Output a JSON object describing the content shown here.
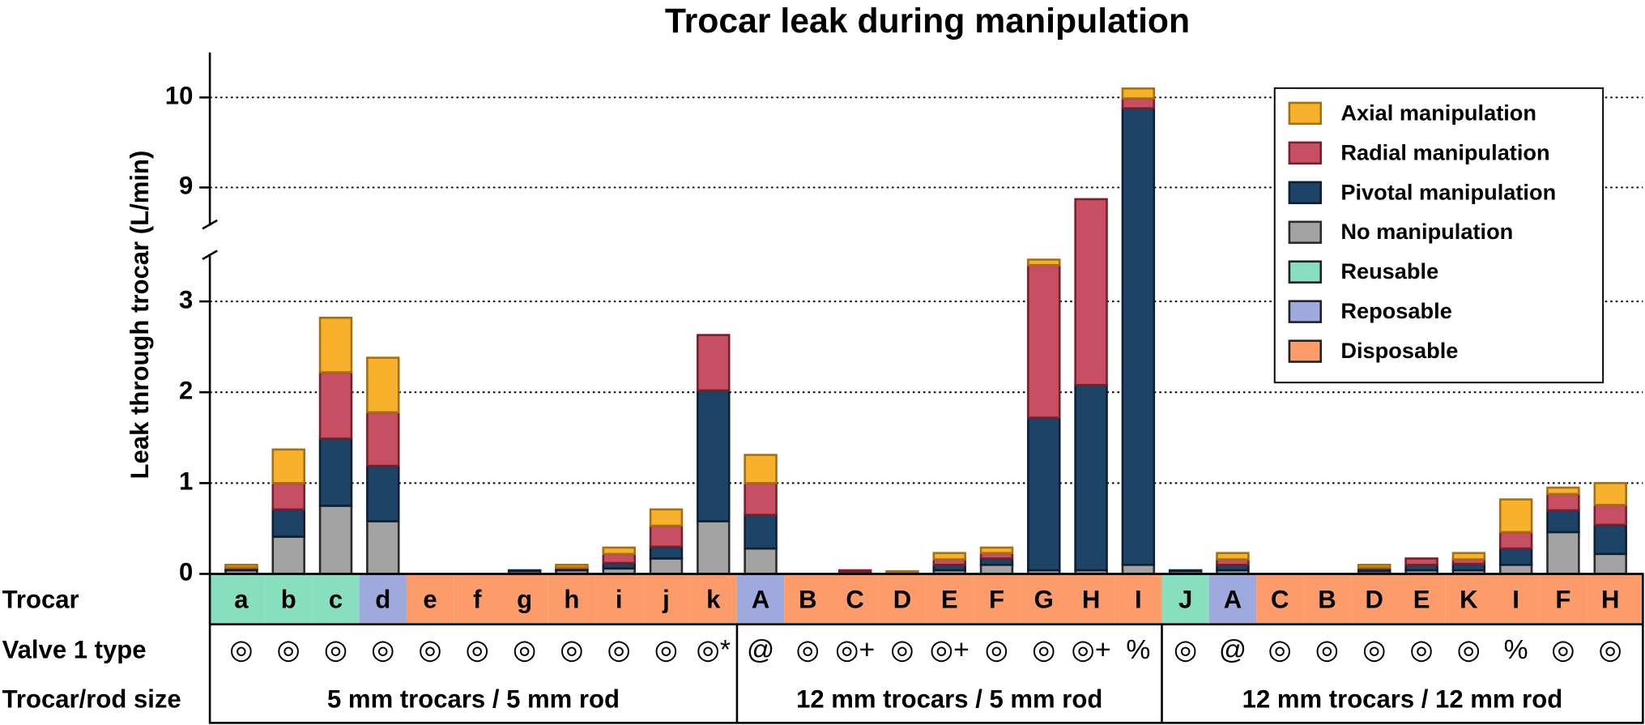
{
  "chart_data": {
    "type": "stacked-bar",
    "title": "Trocar leak during manipulation",
    "y_label": "Leak through trocar (L/min)",
    "categories": [
      "a",
      "b",
      "c",
      "d",
      "e",
      "f",
      "g",
      "h",
      "i",
      "j",
      "k",
      "A",
      "B",
      "C",
      "D",
      "E",
      "F",
      "G",
      "H",
      "I",
      "J",
      "A",
      "C",
      "B",
      "D",
      "E",
      "K",
      "I",
      "F",
      "H"
    ],
    "series": [
      {
        "name": "No manipulation",
        "color": "#a3a3a3",
        "edge": "#2b2b2b",
        "values": [
          0.04,
          0.41,
          0.75,
          0.58,
          0,
          0,
          0.03,
          0.04,
          0.06,
          0.17,
          0.58,
          0.28,
          0,
          0.01,
          0.01,
          0.04,
          0.1,
          0.04,
          0.04,
          0.1,
          0.03,
          0.04,
          0,
          0,
          0.03,
          0.04,
          0.04,
          0.1,
          0.46,
          0.22
        ]
      },
      {
        "name": "Pivotal manipulation",
        "color": "#1d4466",
        "edge": "#0c1f33",
        "values": [
          0.02,
          0.3,
          0.74,
          0.61,
          0,
          0,
          0.01,
          0.02,
          0.06,
          0.13,
          1.44,
          0.37,
          0,
          0.01,
          0,
          0.06,
          0.07,
          1.68,
          2.04,
          9.78,
          0.01,
          0.06,
          0,
          0,
          0.03,
          0.06,
          0.07,
          0.18,
          0.24,
          0.32
        ]
      },
      {
        "name": "Radial manipulation",
        "color": "#c64f63",
        "edge": "#7a1f2a",
        "values": [
          0.01,
          0.29,
          0.73,
          0.59,
          0,
          0,
          0,
          0.01,
          0.1,
          0.23,
          0.61,
          0.35,
          0,
          0.02,
          0,
          0.06,
          0.06,
          1.68,
          6.79,
          0.11,
          0,
          0.06,
          0,
          0,
          0.01,
          0.07,
          0.05,
          0.18,
          0.18,
          0.22
        ]
      },
      {
        "name": "Axial manipulation",
        "color": "#f7b12d",
        "edge": "#a56f12",
        "values": [
          0.03,
          0.37,
          0.6,
          0.6,
          0,
          0,
          0,
          0.03,
          0.07,
          0.18,
          0,
          0.31,
          0,
          0,
          0.02,
          0.07,
          0.06,
          0.06,
          0,
          0.11,
          0,
          0.07,
          0,
          0,
          0.03,
          0,
          0.07,
          0.36,
          0.07,
          0.24
        ]
      }
    ],
    "trocar_types": [
      "Reusable",
      "Reusable",
      "Reusable",
      "Reposable",
      "Disposable",
      "Disposable",
      "Disposable",
      "Disposable",
      "Disposable",
      "Disposable",
      "Disposable",
      "Reposable",
      "Disposable",
      "Disposable",
      "Disposable",
      "Disposable",
      "Disposable",
      "Disposable",
      "Disposable",
      "Disposable",
      "Reusable",
      "Reposable",
      "Disposable",
      "Disposable",
      "Disposable",
      "Disposable",
      "Disposable",
      "Disposable",
      "Disposable",
      "Disposable"
    ],
    "type_legend": [
      {
        "name": "Reusable",
        "color": "#88dfbf"
      },
      {
        "name": "Reposable",
        "color": "#9ea9dd"
      },
      {
        "name": "Disposable",
        "color": "#fb9c6a"
      }
    ],
    "valve_types": [
      "◎",
      "◎",
      "◎",
      "◎",
      "◎",
      "◎",
      "◎",
      "◎",
      "◎",
      "◎",
      "◎*",
      "@",
      "◎",
      "◎+",
      "◎",
      "◎+",
      "◎",
      "◎",
      "◎+",
      "%",
      "◎",
      "@",
      "◎",
      "◎",
      "◎",
      "◎",
      "◎",
      "%",
      "◎",
      "◎"
    ],
    "row_labels": [
      "Trocar",
      "Valve 1 type",
      "Trocar/rod size"
    ],
    "groups": [
      {
        "label": "5 mm trocars / 5 mm rod",
        "size": 11
      },
      {
        "label": "12 mm trocars / 5 mm rod",
        "size": 9
      },
      {
        "label": "12 mm trocars / 12 mm rod",
        "size": 10
      }
    ],
    "ylim": [
      0,
      10.5
    ],
    "y_break": [
      3.5,
      8.6
    ],
    "yticks": [
      0,
      1,
      2,
      3,
      9,
      10
    ],
    "grid": true,
    "legend": "upper right"
  }
}
